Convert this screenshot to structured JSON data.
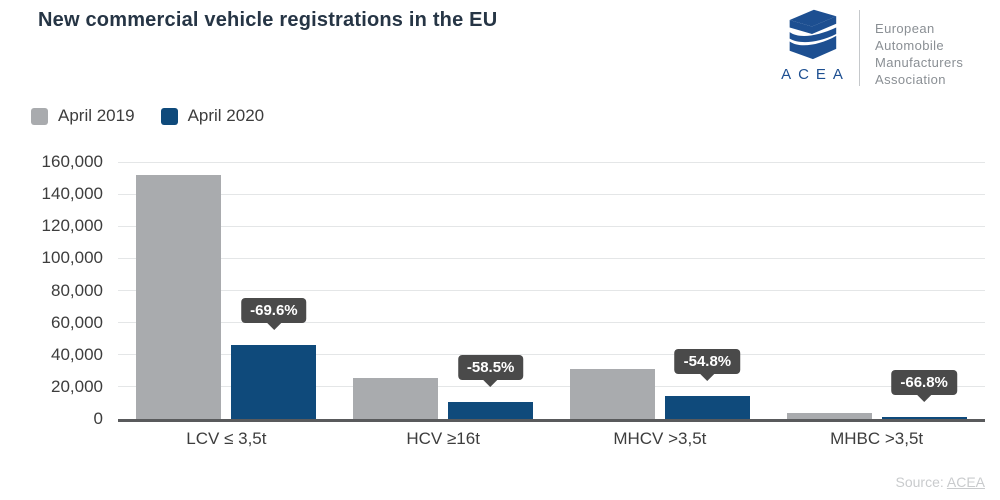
{
  "logo": {
    "acronym": "ACEA",
    "org_lines": [
      "European",
      "Automobile",
      "Manufacturers",
      "Association"
    ]
  },
  "footer": {
    "source_prefix": "Source:",
    "source_link": "ACEA"
  },
  "colors": {
    "title": "#263545",
    "axis_text": "#3d3d3d",
    "gridline": "#e4e6e7",
    "axis_line": "#595a5c",
    "callout_bg": "#4a4a4a",
    "callout_text": "#ffffff",
    "logo_blue": "#1d4f91",
    "divider": "#c5c8cb",
    "org_text": "#8a8f94",
    "source_text": "#c9cbcd"
  },
  "chart_data": {
    "type": "bar",
    "title": "New commercial vehicle registrations in the EU",
    "categories": [
      "LCV ≤ 3,5t",
      "HCV ≥16t",
      "MHCV >3,5t",
      "MHBC >3,5t"
    ],
    "series": [
      {
        "name": "April 2019",
        "color": "#a9abae",
        "values": [
          152000,
          25500,
          31300,
          3700
        ]
      },
      {
        "name": "April 2020",
        "color": "#0f4a7b",
        "values": [
          46200,
          10600,
          14200,
          1230
        ]
      }
    ],
    "annotations": [
      "-69.6%",
      "-58.5%",
      "-54.8%",
      "-66.8%"
    ],
    "ylim": [
      0,
      160000
    ],
    "ytick_step": 20000,
    "grid": true,
    "legend_position": "top-left"
  }
}
